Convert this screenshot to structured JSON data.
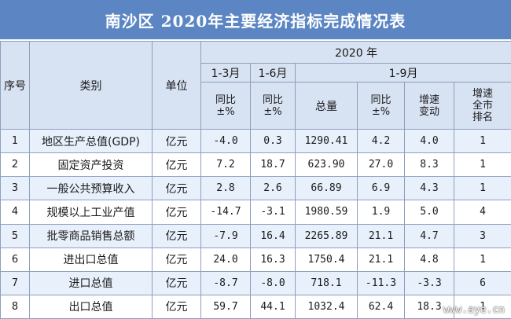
{
  "title": "南沙区 2020年主要经济指标完成情况表",
  "headers": {
    "index": "序号",
    "category": "类别",
    "unit": "单位",
    "year": "2020 年",
    "period_q1": "1-3月",
    "period_h1": "1-6月",
    "period_9m": "1-9月",
    "yoy_q1": [
      "同比",
      "±%"
    ],
    "yoy_h1": [
      "同比",
      "±%"
    ],
    "total": "总量",
    "yoy_9m": [
      "同比",
      "±%"
    ],
    "growth_change": [
      "增速",
      "变动"
    ],
    "growth_rank": [
      "增速",
      "全市",
      "排名"
    ]
  },
  "rows": [
    {
      "idx": "1",
      "category": "地区生产总值(GDP)",
      "unit": "亿元",
      "q1": "-4.0",
      "h1": "0.3",
      "total": "1290.41",
      "yoy": "4.2",
      "change": "4.0",
      "rank": "1"
    },
    {
      "idx": "2",
      "category": "固定资产投资",
      "unit": "亿元",
      "q1": "7.2",
      "h1": "18.7",
      "total": "623.90",
      "yoy": "27.0",
      "change": "8.3",
      "rank": "1"
    },
    {
      "idx": "3",
      "category": "一般公共预算收入",
      "unit": "亿元",
      "q1": "2.8",
      "h1": "2.6",
      "total": "66.89",
      "yoy": "6.9",
      "change": "4.3",
      "rank": "1"
    },
    {
      "idx": "4",
      "category": "规模以上工业产值",
      "unit": "亿元",
      "q1": "-14.7",
      "h1": "-3.1",
      "total": "1980.59",
      "yoy": "1.9",
      "change": "5.0",
      "rank": "4"
    },
    {
      "idx": "5",
      "category": "批零商品销售总额",
      "unit": "亿元",
      "q1": "-7.9",
      "h1": "16.4",
      "total": "2265.89",
      "yoy": "21.1",
      "change": "4.7",
      "rank": "3"
    },
    {
      "idx": "6",
      "category": "进出口总值",
      "unit": "亿元",
      "q1": "24.0",
      "h1": "16.3",
      "total": "1750.4",
      "yoy": "21.1",
      "change": "4.8",
      "rank": "1"
    },
    {
      "idx": "7",
      "category": "进口总值",
      "unit": "亿元",
      "q1": "-8.7",
      "h1": "-8.0",
      "total": "718.1",
      "yoy": "-11.3",
      "change": "-3.3",
      "rank": "6"
    },
    {
      "idx": "8",
      "category": "出口总值",
      "unit": "亿元",
      "q1": "59.7",
      "h1": "44.1",
      "total": "1032.4",
      "yoy": "62.4",
      "change": "18.3",
      "rank": "1"
    }
  ],
  "watermark": "www.aye.cn",
  "colors": {
    "title_bg": "#5b86c3",
    "header_bg": "#d7e2f2",
    "stripe": "#e8f0fb",
    "border": "#8ea0bd"
  }
}
